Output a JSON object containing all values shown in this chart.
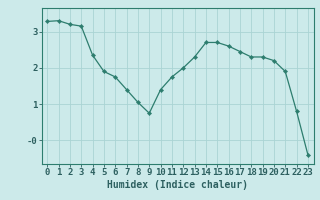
{
  "x": [
    0,
    1,
    2,
    3,
    4,
    5,
    6,
    7,
    8,
    9,
    10,
    11,
    12,
    13,
    14,
    15,
    16,
    17,
    18,
    19,
    20,
    21,
    22,
    23
  ],
  "y": [
    3.28,
    3.3,
    3.2,
    3.15,
    2.35,
    1.9,
    1.75,
    1.4,
    1.05,
    0.75,
    1.4,
    1.75,
    2.0,
    2.3,
    2.7,
    2.7,
    2.6,
    2.45,
    2.3,
    2.3,
    2.2,
    1.9,
    0.8,
    -0.4
  ],
  "line_color": "#2d7d6e",
  "marker_color": "#2d7d6e",
  "bg_color": "#cceaea",
  "grid_color": "#aad4d4",
  "axis_color": "#2d7d6e",
  "tick_label_color": "#2d6060",
  "xlabel": "Humidex (Indice chaleur)",
  "ylim": [
    -0.65,
    3.65
  ],
  "xlim": [
    -0.5,
    23.5
  ],
  "xlabel_fontsize": 7,
  "tick_fontsize": 6.5
}
